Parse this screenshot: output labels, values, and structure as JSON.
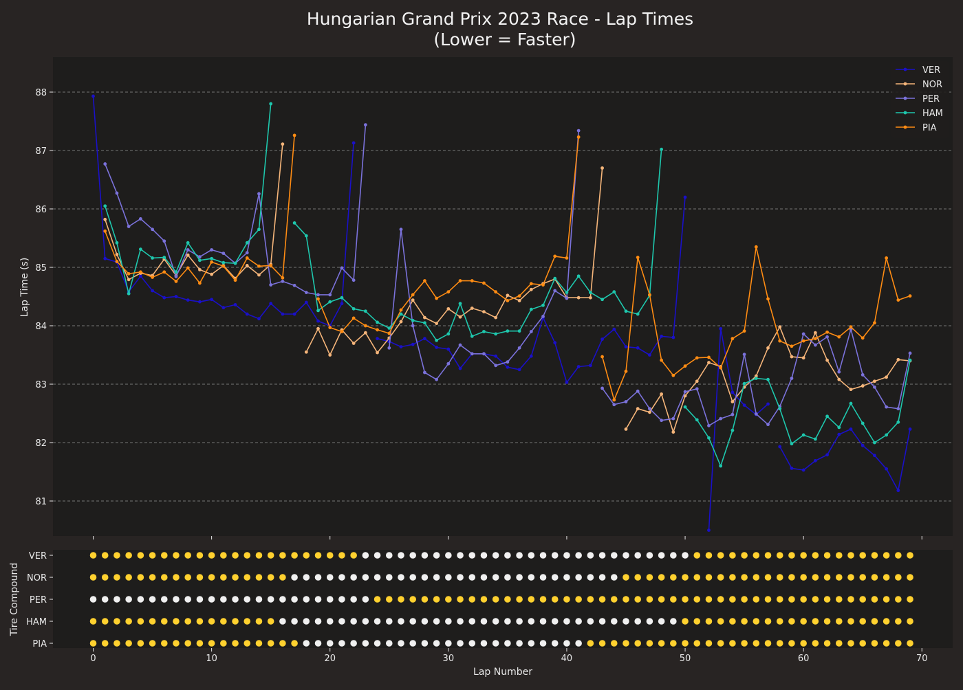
{
  "chart_data": [
    {
      "type": "line",
      "title": "Hungarian Grand Prix 2023 Race - Lap Times",
      "subtitle": "(Lower = Faster)",
      "xlabel": "",
      "ylabel": "Lap Time (s)",
      "xlim": [
        -3.4,
        72.6
      ],
      "ylim": [
        80.4,
        88.6
      ],
      "yticks": [
        81,
        82,
        83,
        84,
        85,
        86,
        87,
        88
      ],
      "grid": "y-dashed",
      "legend": "top-right",
      "colors": {
        "background": "#282423",
        "plot_bg": "#1e1d1c",
        "text": "#e8e8e8",
        "grid": "#bdbdbd"
      },
      "series": [
        {
          "name": "VER",
          "color": "#1a10c8",
          "x": [
            0,
            1,
            2,
            3,
            4,
            5,
            6,
            7,
            8,
            9,
            10,
            11,
            12,
            13,
            14,
            15,
            16,
            17,
            18,
            19,
            20,
            21,
            22,
            null,
            24,
            25,
            26,
            27,
            28,
            29,
            30,
            31,
            32,
            33,
            34,
            35,
            36,
            37,
            38,
            39,
            40,
            41,
            42,
            43,
            44,
            45,
            46,
            47,
            48,
            49,
            50,
            null,
            52,
            53,
            54,
            55,
            56,
            57,
            null,
            58,
            59,
            60,
            61,
            62,
            63,
            64,
            65,
            66,
            67,
            68,
            69
          ],
          "y": [
            87.93,
            85.15,
            85.09,
            84.58,
            84.85,
            84.6,
            84.48,
            84.5,
            84.44,
            84.41,
            84.45,
            84.31,
            84.36,
            84.2,
            84.12,
            84.38,
            84.2,
            84.2,
            84.4,
            84.08,
            84.0,
            84.38,
            87.13,
            null,
            83.78,
            83.73,
            83.64,
            83.68,
            83.78,
            83.63,
            83.6,
            83.27,
            83.52,
            83.52,
            83.48,
            83.29,
            83.25,
            83.48,
            84.14,
            83.71,
            83.03,
            83.3,
            83.32,
            83.77,
            83.94,
            83.64,
            83.62,
            83.5,
            83.82,
            83.8,
            86.2,
            null,
            80.5,
            83.95,
            82.86,
            82.64,
            82.48,
            82.66,
            null,
            81.93,
            81.56,
            81.53,
            81.69,
            81.79,
            82.14,
            82.23,
            81.95,
            81.78,
            81.55,
            81.18,
            82.23
          ]
        },
        {
          "name": "NOR",
          "color": "#f5b57a",
          "x": [
            1,
            2,
            3,
            4,
            5,
            6,
            7,
            8,
            9,
            10,
            11,
            12,
            13,
            14,
            15,
            16,
            null,
            18,
            19,
            20,
            21,
            22,
            23,
            24,
            25,
            26,
            27,
            28,
            29,
            30,
            31,
            32,
            33,
            34,
            35,
            36,
            37,
            38,
            39,
            40,
            41,
            42,
            43,
            null,
            45,
            46,
            47,
            48,
            49,
            50,
            51,
            52,
            53,
            54,
            55,
            56,
            57,
            58,
            59,
            60,
            61,
            62,
            63,
            64,
            65,
            66,
            67,
            68,
            69
          ],
          "y": [
            85.82,
            85.22,
            84.79,
            84.9,
            84.86,
            85.14,
            84.86,
            85.21,
            84.96,
            84.88,
            85.03,
            84.81,
            85.03,
            84.87,
            85.05,
            87.11,
            null,
            83.55,
            83.95,
            83.5,
            83.93,
            83.7,
            83.88,
            83.54,
            83.79,
            84.07,
            84.44,
            84.14,
            84.04,
            84.29,
            84.15,
            84.3,
            84.24,
            84.14,
            84.52,
            84.43,
            84.62,
            84.72,
            84.8,
            84.48,
            84.48,
            84.48,
            86.7,
            null,
            82.23,
            82.58,
            82.52,
            82.83,
            82.18,
            82.8,
            83.05,
            83.37,
            83.3,
            82.7,
            82.95,
            83.14,
            83.62,
            83.98,
            83.47,
            83.45,
            83.88,
            83.41,
            83.08,
            82.91,
            82.97,
            83.05,
            83.12,
            83.42,
            83.4
          ]
        },
        {
          "name": "PER",
          "color": "#7b72db",
          "x": [
            1,
            2,
            3,
            4,
            5,
            6,
            7,
            8,
            9,
            10,
            11,
            12,
            13,
            14,
            15,
            16,
            17,
            18,
            19,
            20,
            21,
            22,
            23,
            null,
            25,
            26,
            27,
            28,
            29,
            30,
            31,
            32,
            33,
            34,
            35,
            36,
            37,
            38,
            39,
            40,
            41,
            null,
            43,
            44,
            45,
            46,
            47,
            48,
            49,
            50,
            51,
            52,
            53,
            54,
            55,
            56,
            57,
            58,
            59,
            60,
            61,
            62,
            63,
            64,
            65,
            66,
            67,
            68,
            69
          ],
          "y": [
            86.77,
            86.27,
            85.7,
            85.83,
            85.65,
            85.45,
            84.84,
            85.3,
            85.18,
            85.3,
            85.24,
            85.07,
            85.25,
            86.26,
            84.7,
            84.76,
            84.69,
            84.57,
            84.53,
            84.53,
            84.99,
            84.78,
            87.44,
            null,
            83.62,
            85.65,
            84.0,
            83.2,
            83.08,
            83.35,
            83.67,
            83.52,
            83.52,
            83.32,
            83.38,
            83.62,
            83.9,
            84.16,
            84.6,
            84.47,
            87.34,
            null,
            82.93,
            82.65,
            82.7,
            82.88,
            82.58,
            82.38,
            82.41,
            82.87,
            82.92,
            82.29,
            82.41,
            82.48,
            83.51,
            82.49,
            82.31,
            82.62,
            83.1,
            83.86,
            83.67,
            83.81,
            83.21,
            83.94,
            83.16,
            82.95,
            82.61,
            82.58,
            83.53
          ]
        },
        {
          "name": "HAM",
          "color": "#1ec7ad",
          "x": [
            1,
            2,
            3,
            4,
            5,
            6,
            7,
            8,
            9,
            10,
            11,
            12,
            13,
            14,
            15,
            null,
            17,
            18,
            19,
            20,
            21,
            22,
            23,
            24,
            25,
            26,
            27,
            28,
            29,
            30,
            31,
            32,
            33,
            34,
            35,
            36,
            37,
            38,
            39,
            40,
            41,
            42,
            43,
            44,
            45,
            46,
            47,
            48,
            null,
            50,
            51,
            52,
            53,
            54,
            55,
            56,
            57,
            58,
            59,
            60,
            61,
            62,
            63,
            64,
            65,
            66,
            67,
            68,
            69
          ],
          "y": [
            86.05,
            85.42,
            84.55,
            85.31,
            85.16,
            85.17,
            84.92,
            85.42,
            85.12,
            85.15,
            85.08,
            85.07,
            85.42,
            85.65,
            87.8,
            null,
            85.76,
            85.54,
            84.26,
            84.41,
            84.48,
            84.29,
            84.25,
            84.06,
            83.96,
            84.2,
            84.09,
            84.05,
            83.75,
            83.86,
            84.38,
            83.82,
            83.9,
            83.86,
            83.91,
            83.91,
            84.28,
            84.35,
            84.81,
            84.57,
            84.85,
            84.57,
            84.45,
            84.58,
            84.25,
            84.2,
            84.52,
            87.02,
            null,
            82.61,
            82.39,
            82.08,
            81.6,
            82.21,
            83.01,
            83.1,
            83.08,
            82.58,
            81.98,
            82.13,
            82.06,
            82.45,
            82.26,
            82.67,
            82.33,
            82.0,
            82.13,
            82.35,
            83.41
          ]
        },
        {
          "name": "PIA",
          "color": "#ff8c13",
          "x": [
            1,
            2,
            3,
            4,
            5,
            6,
            7,
            8,
            9,
            10,
            11,
            12,
            13,
            14,
            15,
            16,
            17,
            null,
            19,
            20,
            21,
            22,
            23,
            24,
            25,
            26,
            27,
            28,
            29,
            30,
            31,
            32,
            33,
            34,
            35,
            36,
            37,
            38,
            39,
            40,
            41,
            null,
            43,
            44,
            45,
            46,
            47,
            48,
            49,
            50,
            51,
            52,
            53,
            54,
            55,
            56,
            57,
            58,
            59,
            60,
            61,
            62,
            63,
            64,
            65,
            66,
            67,
            68,
            69
          ],
          "y": [
            85.62,
            85.1,
            84.89,
            84.92,
            84.83,
            84.92,
            84.76,
            84.99,
            84.73,
            85.09,
            85.02,
            84.78,
            85.16,
            85.02,
            85.03,
            84.82,
            87.26,
            null,
            84.46,
            83.97,
            83.9,
            84.13,
            84.0,
            83.93,
            83.87,
            84.27,
            84.53,
            84.77,
            84.47,
            84.58,
            84.77,
            84.77,
            84.73,
            84.58,
            84.43,
            84.51,
            84.72,
            84.7,
            85.19,
            85.16,
            87.23,
            null,
            83.47,
            82.73,
            83.22,
            85.17,
            84.53,
            83.41,
            83.15,
            83.31,
            83.45,
            83.46,
            83.28,
            83.78,
            83.91,
            85.35,
            84.46,
            83.74,
            83.65,
            83.74,
            83.78,
            83.89,
            83.81,
            83.98,
            83.79,
            84.05,
            85.16,
            84.44,
            84.51
          ]
        }
      ]
    },
    {
      "type": "scatter",
      "ylabel": "Tire Compound",
      "xlabel": "Lap Number",
      "xticks": [
        0,
        10,
        20,
        30,
        40,
        50,
        60,
        70
      ],
      "drivers": [
        "VER",
        "NOR",
        "PER",
        "HAM",
        "PIA"
      ],
      "compound_colors": {
        "yellow": "#ffd12f",
        "white": "#f0f0f0"
      },
      "laps": [
        0,
        69
      ],
      "stints": {
        "VER": [
          {
            "from": 0,
            "to": 22,
            "compound": "yellow"
          },
          {
            "from": 23,
            "to": 50,
            "compound": "white"
          },
          {
            "from": 51,
            "to": 69,
            "compound": "yellow"
          }
        ],
        "NOR": [
          {
            "from": 0,
            "to": 16,
            "compound": "yellow"
          },
          {
            "from": 17,
            "to": 44,
            "compound": "white"
          },
          {
            "from": 45,
            "to": 69,
            "compound": "yellow"
          }
        ],
        "PER": [
          {
            "from": 0,
            "to": 23,
            "compound": "white"
          },
          {
            "from": 24,
            "to": 69,
            "compound": "yellow"
          }
        ],
        "HAM": [
          {
            "from": 0,
            "to": 15,
            "compound": "yellow"
          },
          {
            "from": 16,
            "to": 49,
            "compound": "white"
          },
          {
            "from": 50,
            "to": 69,
            "compound": "yellow"
          }
        ],
        "PIA": [
          {
            "from": 0,
            "to": 17,
            "compound": "yellow"
          },
          {
            "from": 18,
            "to": 41,
            "compound": "white"
          },
          {
            "from": 42,
            "to": 69,
            "compound": "yellow"
          }
        ]
      }
    }
  ]
}
